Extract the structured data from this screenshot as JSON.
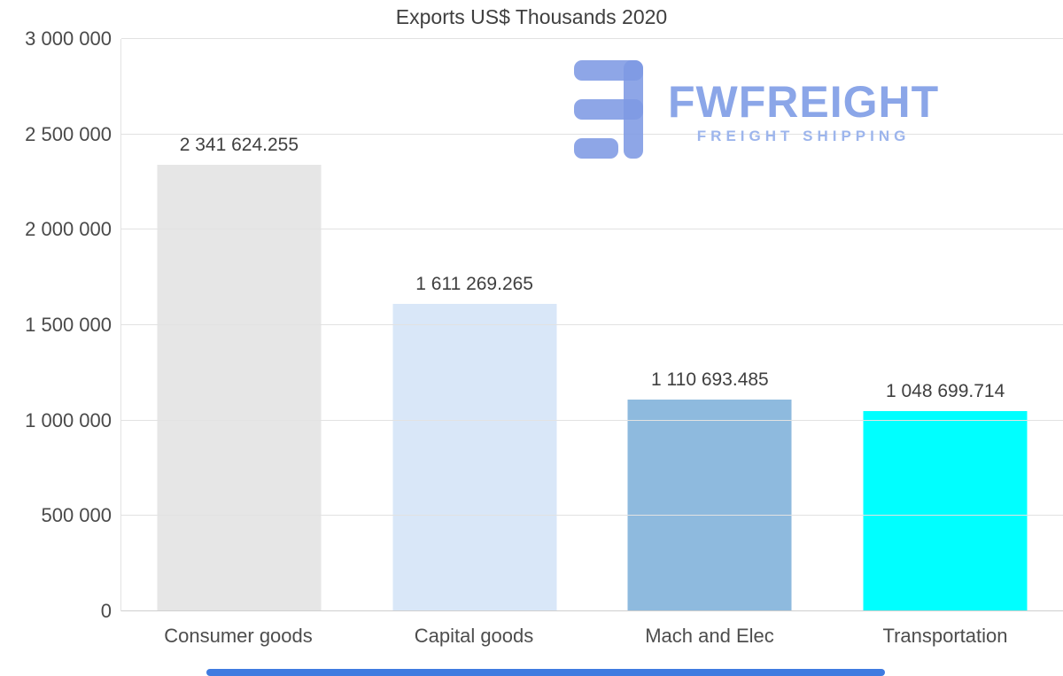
{
  "title": "Exports US$ Thousands 2020",
  "watermark": {
    "brand": "FWFREIGHT",
    "tagline": "FREIGHT SHIPPING",
    "brand_color": "#8ba6e8",
    "icon_color": "#7e9ae4"
  },
  "scrollbar": {
    "color": "#3f7be0"
  },
  "chart_data": {
    "type": "bar",
    "title": "Exports US$ Thousands 2020",
    "categories": [
      "Consumer goods",
      "Capital goods",
      "Mach and Elec",
      "Transportation"
    ],
    "values": [
      2341624.255,
      1611269.265,
      1110693.485,
      1048699.714
    ],
    "value_labels": [
      "2 341 624.255",
      "1 611 269.265",
      "1 110 693.485",
      "1 048 699.714"
    ],
    "bar_colors": [
      "#e6e6e6",
      "#d9e7f8",
      "#8ebade",
      "#00ffff"
    ],
    "xlabel": "",
    "ylabel": "",
    "ylim": [
      0,
      3000000
    ],
    "yticks": [
      {
        "value": 0,
        "label": "0"
      },
      {
        "value": 500000,
        "label": "500 000"
      },
      {
        "value": 1000000,
        "label": "1 000 000"
      },
      {
        "value": 1500000,
        "label": "1 500 000"
      },
      {
        "value": 2000000,
        "label": "2 000 000"
      },
      {
        "value": 2500000,
        "label": "2 500 000"
      },
      {
        "value": 3000000,
        "label": "3 000 000"
      }
    ],
    "grid": true,
    "legend": false,
    "gridline_color": "#e2e2e2"
  }
}
